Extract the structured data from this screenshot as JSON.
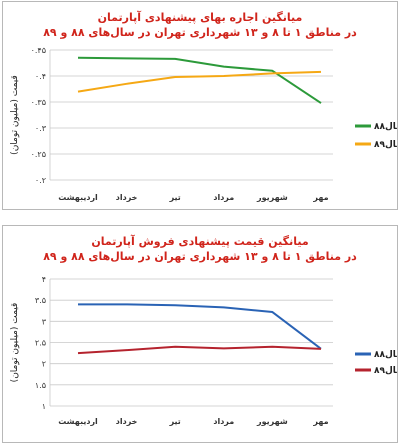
{
  "chart_data": [
    {
      "type": "line",
      "title_lines": [
        "میانگین اجاره بهای پیشنهادی آپارتمان",
        "در مناطق ۱ تا ۸ و ۱۳ شهرداری تهران در سال‌های ۸۸ و ۸۹"
      ],
      "title_colors": [
        "#d0241b",
        "#d0241b"
      ],
      "ylabel": "قیمت (میلیون تومان)",
      "categories": [
        "اردیبهشت",
        "خرداد",
        "تیر",
        "مرداد",
        "شهریور",
        "مهر"
      ],
      "yticks": [
        0.2,
        0.25,
        0.3,
        0.35,
        0.4,
        0.45
      ],
      "ytick_labels": [
        "۰.۲",
        "۰.۲۵",
        "۰.۳",
        "۰.۳۵",
        "۰.۴",
        "۰.۴۵"
      ],
      "ylim": [
        0.2,
        0.45
      ],
      "grid": true,
      "legend_position": "right",
      "series": [
        {
          "name": "۸۸سال",
          "color": "#2c9a3a",
          "values": [
            0.435,
            0.434,
            0.433,
            0.418,
            0.41,
            0.348
          ]
        },
        {
          "name": "۸۹سال",
          "color": "#f5a814",
          "values": [
            0.37,
            0.385,
            0.398,
            0.4,
            0.405,
            0.408
          ]
        }
      ]
    },
    {
      "type": "line",
      "title_lines": [
        "میانگین قیمت پیشنهادی فروش آپارتمان",
        "در مناطق ۱ تا ۸ و ۱۳ شهرداری تهران در سال‌های ۸۸ و ۸۹"
      ],
      "title_colors": [
        "#d0241b",
        "#d0241b"
      ],
      "ylabel": "قیمت (میلیون تومان)",
      "categories": [
        "اردیبهشت",
        "خرداد",
        "تیر",
        "مرداد",
        "شهریور",
        "مهر"
      ],
      "yticks": [
        1,
        1.5,
        2,
        2.5,
        3,
        3.5,
        4
      ],
      "ytick_labels": [
        "۱",
        "۱.۵",
        "۲",
        "۲.۵",
        "۳",
        "۳.۵",
        "۴"
      ],
      "ylim": [
        1,
        4
      ],
      "grid": true,
      "legend_position": "right",
      "series": [
        {
          "name": "۸۸سال",
          "color": "#2a63b5",
          "values": [
            3.4,
            3.4,
            3.38,
            3.33,
            3.22,
            2.35
          ]
        },
        {
          "name": "۸۹سال",
          "color": "#b5232e",
          "values": [
            2.25,
            2.32,
            2.4,
            2.36,
            2.4,
            2.35
          ]
        }
      ]
    }
  ]
}
